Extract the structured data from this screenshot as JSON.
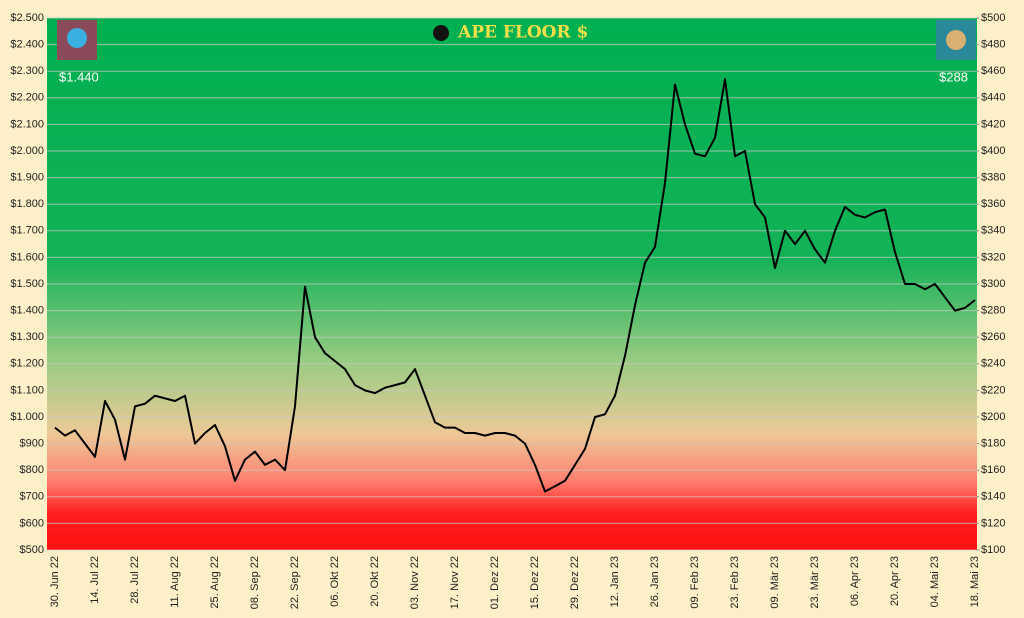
{
  "chart_data": {
    "type": "line",
    "title": "APE FLOOR $",
    "annotations": [
      "$1.440",
      "$288"
    ],
    "categories": [
      "30. Jun 22",
      null,
      null,
      null,
      "14. Jul 22",
      null,
      null,
      null,
      "28. Jul 22",
      null,
      null,
      null,
      "11. Aug 22",
      null,
      null,
      null,
      "25. Aug 22",
      null,
      null,
      null,
      "08. Sep 22",
      null,
      null,
      null,
      "22. Sep 22",
      null,
      null,
      null,
      "06. Okt 22",
      null,
      null,
      null,
      "20. Okt 22",
      null,
      null,
      null,
      "03. Nov 22",
      null,
      null,
      null,
      "17. Nov 22",
      null,
      null,
      null,
      "01. Dez 22",
      null,
      null,
      null,
      "15. Dez 22",
      null,
      null,
      null,
      "29. Dez 22",
      null,
      null,
      null,
      "12. Jan 23",
      null,
      null,
      null,
      "26. Jan 23",
      null,
      null,
      null,
      "09. Feb 23",
      null,
      null,
      null,
      "23. Feb 23",
      null,
      null,
      null,
      "09. Mär 23",
      null,
      null,
      null,
      "23. Mär 23",
      null,
      null,
      null,
      "06. Apr 23",
      null,
      null,
      null,
      "20. Apr 23",
      null,
      null,
      null,
      "04. Mai 23",
      null,
      null,
      null,
      "18. Mai 23"
    ],
    "values": [
      960,
      930,
      950,
      900,
      850,
      1060,
      990,
      840,
      1040,
      1050,
      1080,
      1070,
      1060,
      1080,
      900,
      940,
      970,
      890,
      760,
      840,
      870,
      820,
      840,
      800,
      1040,
      1490,
      1300,
      1240,
      1210,
      1180,
      1120,
      1100,
      1090,
      1110,
      1120,
      1130,
      1180,
      1080,
      980,
      960,
      960,
      940,
      940,
      930,
      940,
      940,
      930,
      900,
      820,
      720,
      740,
      760,
      820,
      880,
      1000,
      1010,
      1080,
      1230,
      1420,
      1580,
      1640,
      1880,
      2250,
      2100,
      1990,
      1980,
      2050,
      2270,
      1980,
      2000,
      1800,
      1750,
      1560,
      1700,
      1650,
      1700,
      1630,
      1580,
      1700,
      1790,
      1760,
      1750,
      1770,
      1780,
      1620,
      1500,
      1500,
      1480,
      1500,
      1450,
      1400,
      1410,
      1440
    ],
    "color": "#000000",
    "ylim": [
      500,
      2500
    ],
    "yticks": [
      {
        "value": 500,
        "label": "$500"
      },
      {
        "value": 600,
        "label": "$600"
      },
      {
        "value": 700,
        "label": "$700"
      },
      {
        "value": 800,
        "label": "$800"
      },
      {
        "value": 900,
        "label": "$900"
      },
      {
        "value": 1000,
        "label": "$1.000"
      },
      {
        "value": 1100,
        "label": "$1.100"
      },
      {
        "value": 1200,
        "label": "$1.200"
      },
      {
        "value": 1300,
        "label": "$1.300"
      },
      {
        "value": 1400,
        "label": "$1.400"
      },
      {
        "value": 1500,
        "label": "$1.500"
      },
      {
        "value": 1600,
        "label": "$1.600"
      },
      {
        "value": 1700,
        "label": "$1.700"
      },
      {
        "value": 1800,
        "label": "$1.800"
      },
      {
        "value": 1900,
        "label": "$1.900"
      },
      {
        "value": 2000,
        "label": "$2.000"
      },
      {
        "value": 2100,
        "label": "$2.100"
      },
      {
        "value": 2200,
        "label": "$2.200"
      },
      {
        "value": 2300,
        "label": "$2.300"
      },
      {
        "value": 2400,
        "label": "$2.400"
      },
      {
        "value": 2500,
        "label": "$2.500"
      }
    ],
    "y2lim": [
      100,
      500
    ],
    "y2ticks": [
      {
        "value": 100,
        "label": "$100"
      },
      {
        "value": 120,
        "label": "$120"
      },
      {
        "value": 140,
        "label": "$140"
      },
      {
        "value": 160,
        "label": "$160"
      },
      {
        "value": 180,
        "label": "$180"
      },
      {
        "value": 200,
        "label": "$200"
      },
      {
        "value": 220,
        "label": "$220"
      },
      {
        "value": 240,
        "label": "$240"
      },
      {
        "value": 260,
        "label": "$260"
      },
      {
        "value": 280,
        "label": "$280"
      },
      {
        "value": 300,
        "label": "$300"
      },
      {
        "value": 320,
        "label": "$320"
      },
      {
        "value": 340,
        "label": "$340"
      },
      {
        "value": 360,
        "label": "$360"
      },
      {
        "value": 380,
        "label": "$380"
      },
      {
        "value": 400,
        "label": "$400"
      },
      {
        "value": 420,
        "label": "$420"
      },
      {
        "value": 440,
        "label": "$440"
      },
      {
        "value": 460,
        "label": "$460"
      },
      {
        "value": 480,
        "label": "$480"
      },
      {
        "value": 500,
        "label": "$500"
      }
    ],
    "grid": true
  }
}
